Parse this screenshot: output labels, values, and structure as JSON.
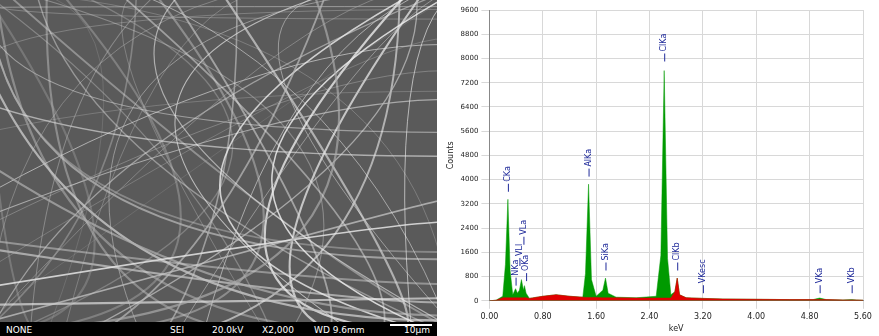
{
  "image": {
    "caption": [
      "NONE",
      "SEI",
      "20.0kV",
      "X2,000",
      "WD 9.6mm",
      "10µm"
    ]
  },
  "chart_data": {
    "type": "area",
    "xlabel": "keV",
    "ylabel": "Counts",
    "x": [
      0.0,
      0.1,
      0.2,
      0.24,
      0.277,
      0.31,
      0.35,
      0.392,
      0.42,
      0.45,
      0.48,
      0.51,
      0.525,
      0.55,
      0.6,
      0.8,
      1.0,
      1.2,
      1.4,
      1.44,
      1.486,
      1.53,
      1.6,
      1.7,
      1.74,
      1.78,
      1.9,
      2.2,
      2.5,
      2.57,
      2.62,
      2.67,
      2.72,
      2.78,
      2.815,
      2.85,
      2.95,
      3.2,
      3.5,
      4.0,
      4.5,
      4.85,
      4.95,
      5.05,
      5.3,
      5.43,
      5.5,
      5.6
    ],
    "series": [
      {
        "color": "#009a00",
        "values": [
          0,
          20,
          150,
          1200,
          3350,
          1000,
          200,
          400,
          250,
          350,
          700,
          350,
          500,
          250,
          80,
          150,
          200,
          150,
          120,
          900,
          3850,
          700,
          150,
          350,
          750,
          250,
          120,
          100,
          150,
          1500,
          7600,
          1400,
          200,
          300,
          750,
          200,
          100,
          80,
          60,
          50,
          40,
          40,
          90,
          40,
          30,
          40,
          30,
          20
        ]
      },
      {
        "color": "#e00000",
        "values": [
          0,
          20,
          100,
          100,
          100,
          100,
          100,
          100,
          100,
          100,
          100,
          100,
          100,
          100,
          80,
          150,
          200,
          150,
          120,
          110,
          110,
          110,
          110,
          100,
          100,
          100,
          100,
          90,
          90,
          90,
          90,
          90,
          90,
          300,
          750,
          200,
          100,
          80,
          60,
          50,
          40,
          40,
          40,
          40,
          30,
          30,
          30,
          20
        ]
      }
    ],
    "xlim": [
      0,
      5.6
    ],
    "xticks": [
      {
        "value": 0,
        "label": "0.00"
      },
      {
        "value": 0.8,
        "label": "0.80"
      },
      {
        "value": 1.6,
        "label": "1.60"
      },
      {
        "value": 2.4,
        "label": "2.40"
      },
      {
        "value": 3.2,
        "label": "3.20"
      },
      {
        "value": 4,
        "label": "4.00"
      },
      {
        "value": 4.8,
        "label": "4.80"
      },
      {
        "value": 5.6,
        "label": "5.60"
      }
    ],
    "ylim": [
      0,
      9600
    ],
    "yticks": [
      0,
      800,
      1600,
      2400,
      3200,
      4000,
      4800,
      5600,
      6400,
      7200,
      8000,
      8800,
      9600
    ],
    "grid": true,
    "annotations": [
      {
        "text": "CKa",
        "x": 0.277,
        "y": 3600
      },
      {
        "text": "NKa",
        "x": 0.392,
        "y": 500
      },
      {
        "text": "VLl",
        "x": 0.45,
        "y": 1150
      },
      {
        "text": "VLa",
        "x": 0.51,
        "y": 1850
      },
      {
        "text": "OKa",
        "x": 0.55,
        "y": 650
      },
      {
        "text": "AlKa",
        "x": 1.486,
        "y": 4100
      },
      {
        "text": "SiKa",
        "x": 1.74,
        "y": 1000
      },
      {
        "text": "ClKa",
        "x": 2.62,
        "y": 7900
      },
      {
        "text": "ClKb",
        "x": 2.815,
        "y": 1000
      },
      {
        "text": "VKesc",
        "x": 3.2,
        "y": 250
      },
      {
        "text": "VKa",
        "x": 4.95,
        "y": 250
      },
      {
        "text": "VKb",
        "x": 5.43,
        "y": 250
      }
    ]
  }
}
